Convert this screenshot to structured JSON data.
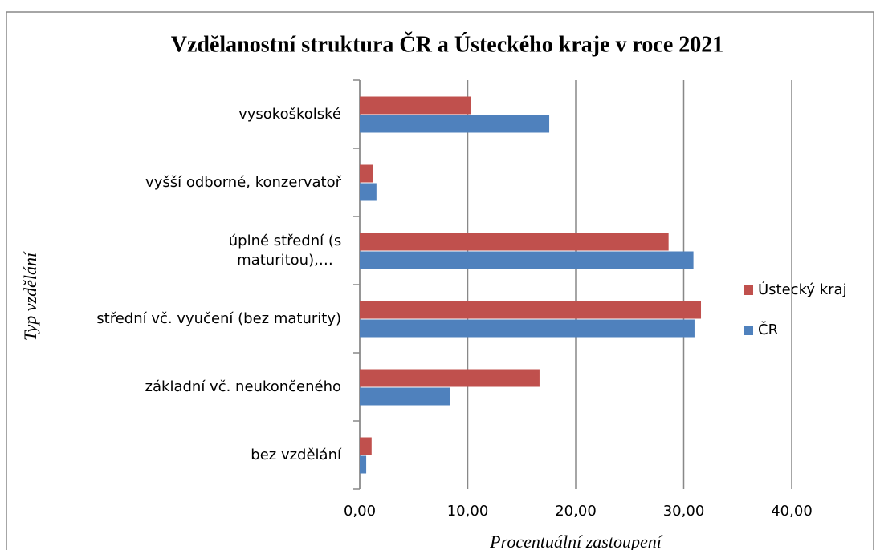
{
  "chart_data": {
    "type": "bar",
    "orientation": "horizontal",
    "title": "Vzdělanostní struktura ČR a Ústeckého kraje v roce 2021",
    "x_label": "Procentuální zastoupení",
    "y_label": "Typ vzdělání",
    "categories": [
      "bez vzdělání",
      "základní vč.  neukončeného",
      "střední vč. vyučení (bez maturity)",
      "úplné střední (s maturitou),…",
      "vyšší odborné, konzervatoř",
      "vysokoškolské"
    ],
    "series": [
      {
        "name": "ČR",
        "color": "#4f81bd",
        "values": [
          0.6,
          8.4,
          31.0,
          30.9,
          1.55,
          17.55
        ]
      },
      {
        "name": "Ústecký kraj",
        "color": "#c0504d",
        "values": [
          1.1,
          16.65,
          31.6,
          28.6,
          1.2,
          10.3
        ]
      }
    ],
    "xlim": [
      0,
      40
    ],
    "xticks": [
      {
        "value": 0,
        "label": "0,00"
      },
      {
        "value": 10,
        "label": "10,00"
      },
      {
        "value": 20,
        "label": "20,00"
      },
      {
        "value": 30,
        "label": "30,00"
      },
      {
        "value": 40,
        "label": "40,00"
      }
    ],
    "grid": true,
    "legend": "right"
  }
}
